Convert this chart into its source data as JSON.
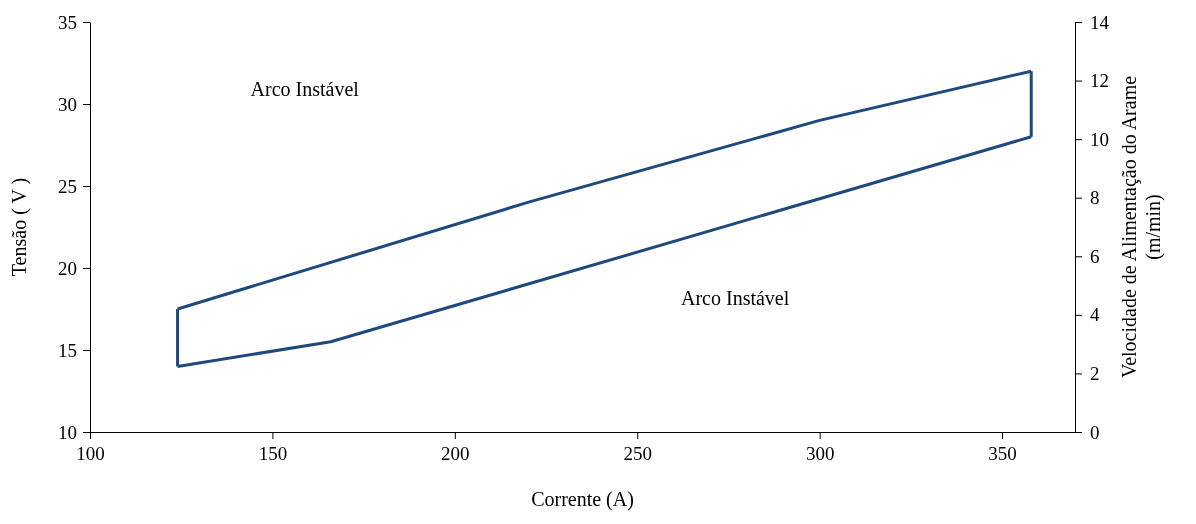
{
  "chart_data": {
    "type": "line",
    "xlabel": "Corrente  (A)",
    "ylabel": "Tensão ( V )",
    "y2label": "Velocidade de Alimentação do Arame\n(m/min)",
    "xlim": [
      100,
      370
    ],
    "xticks": [
      100,
      150,
      200,
      250,
      300,
      350
    ],
    "ylim": [
      10,
      35
    ],
    "yticks": [
      10,
      15,
      20,
      25,
      30,
      35
    ],
    "y2lim": [
      0,
      14
    ],
    "y2ticks": [
      0,
      2,
      4,
      6,
      8,
      10,
      12,
      14
    ],
    "grid": false,
    "marker": "none",
    "line_style": "solid",
    "series": [
      {
        "color": "#1f497d",
        "x": [
          124,
          220,
          300,
          358
        ],
        "values": [
          17.5,
          24,
          29,
          32
        ]
      },
      {
        "color": "#1f497d",
        "x": [
          124,
          166,
          358
        ],
        "values": [
          14,
          15.5,
          28
        ]
      },
      {
        "color": "#1f497d",
        "x": [
          124,
          124
        ],
        "values": [
          14,
          17.5
        ]
      },
      {
        "color": "#1f497d",
        "x": [
          358,
          358
        ],
        "values": [
          28,
          32
        ]
      }
    ],
    "annotations": [
      "Arco Instável",
      "Arco Instável"
    ]
  }
}
